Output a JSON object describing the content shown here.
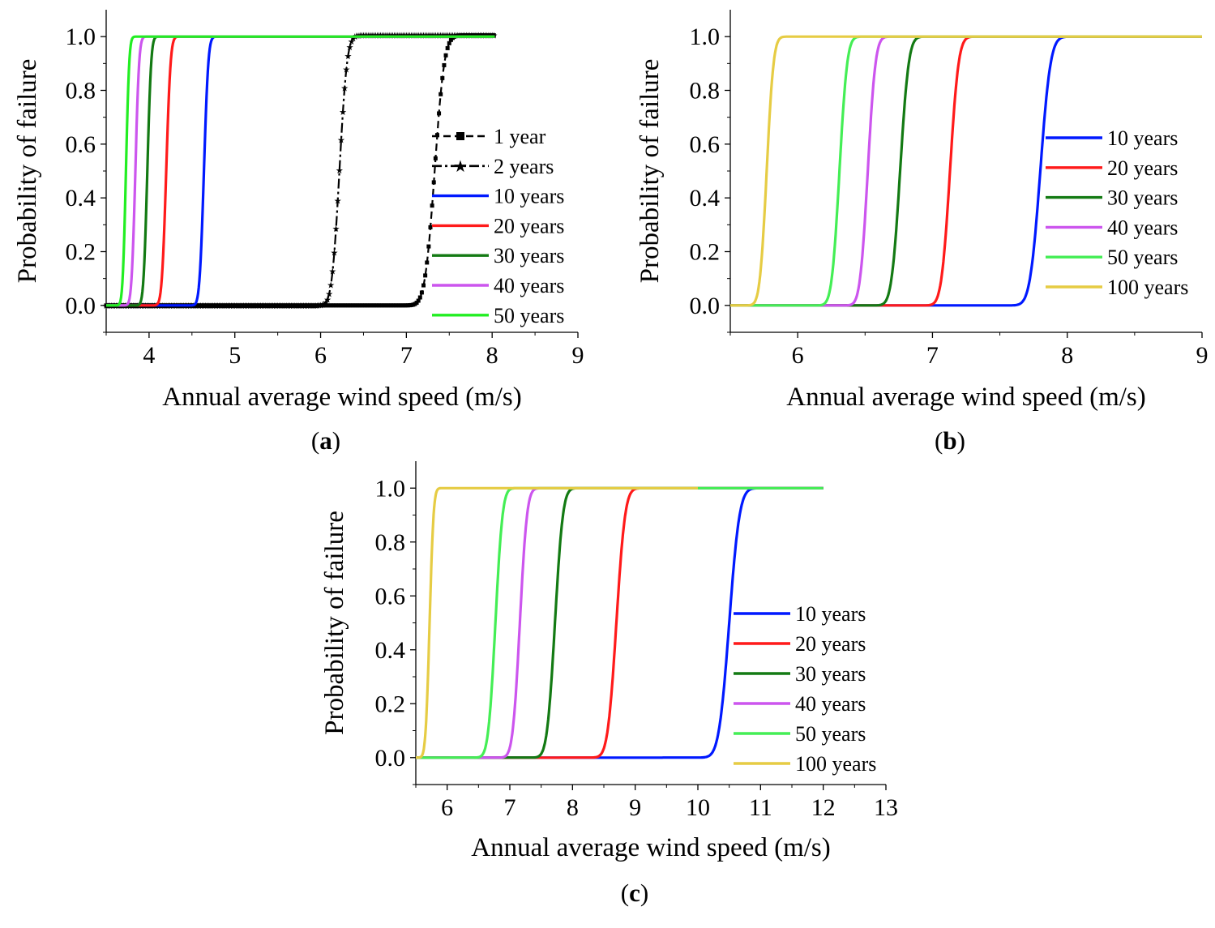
{
  "chart_data": [
    {
      "id": "a",
      "type": "line",
      "panel_label": "a",
      "title": "",
      "xlabel": "Annual average wind speed (m/s)",
      "ylabel": "Probability of failure",
      "xlim": [
        3.5,
        9
      ],
      "ylim": [
        -0.1,
        1.1
      ],
      "xticks": [
        4,
        5,
        6,
        7,
        8,
        9
      ],
      "yticks": [
        0.0,
        0.2,
        0.4,
        0.6,
        0.8,
        1.0
      ],
      "ytick_labels": [
        "0.0",
        "0.2",
        "0.4",
        "0.6",
        "0.8",
        "1.0"
      ],
      "grid": false,
      "legend_position": "center-right",
      "series": [
        {
          "name": "1 year",
          "color": "#000000",
          "style": "dashed-squares",
          "mu": 7.33,
          "sigma": 0.09,
          "xmin": 3.5,
          "xmax": 8.03,
          "y_end": 1.005
        },
        {
          "name": "2 years",
          "color": "#000000",
          "style": "dashdot-stars",
          "mu": 6.22,
          "sigma": 0.07,
          "xmin": 3.5,
          "xmax": 8.03,
          "y_end": 1.005
        },
        {
          "name": "10 years",
          "color": "#0019ff",
          "style": "solid",
          "mu": 4.64,
          "sigma": 0.04,
          "xmin": 3.5,
          "xmax": 8.03
        },
        {
          "name": "20 years",
          "color": "#ff1a1a",
          "style": "solid",
          "mu": 4.2,
          "sigma": 0.04,
          "xmin": 3.5,
          "xmax": 8.03
        },
        {
          "name": "30 years",
          "color": "#137a13",
          "style": "solid",
          "mu": 3.98,
          "sigma": 0.035,
          "xmin": 3.5,
          "xmax": 8.03
        },
        {
          "name": "40 years",
          "color": "#cc55ee",
          "style": "solid",
          "mu": 3.84,
          "sigma": 0.035,
          "xmin": 3.5,
          "xmax": 8.03
        },
        {
          "name": "50 years",
          "color": "#22ee22",
          "style": "solid",
          "mu": 3.73,
          "sigma": 0.03,
          "xmin": 3.5,
          "xmax": 8.03
        }
      ]
    },
    {
      "id": "b",
      "type": "line",
      "panel_label": "b",
      "title": "",
      "xlabel": "Annual average wind speed (m/s)",
      "ylabel": "Probability of failure",
      "xlim": [
        5.5,
        9
      ],
      "ylim": [
        -0.1,
        1.1
      ],
      "xticks": [
        6,
        7,
        8,
        9
      ],
      "yticks": [
        0.0,
        0.2,
        0.4,
        0.6,
        0.8,
        1.0
      ],
      "ytick_labels": [
        "0.0",
        "0.2",
        "0.4",
        "0.6",
        "0.8",
        "1.0"
      ],
      "grid": false,
      "legend_position": "center-right",
      "series": [
        {
          "name": "10 years",
          "color": "#0019ff",
          "style": "solid",
          "mu": 7.8,
          "sigma": 0.06,
          "xmin": 5.5,
          "xmax": 9.0
        },
        {
          "name": "20 years",
          "color": "#ff1a1a",
          "style": "solid",
          "mu": 7.13,
          "sigma": 0.05,
          "xmin": 5.5,
          "xmax": 9.0
        },
        {
          "name": "30 years",
          "color": "#137a13",
          "style": "solid",
          "mu": 6.76,
          "sigma": 0.05,
          "xmin": 5.5,
          "xmax": 9.0
        },
        {
          "name": "40 years",
          "color": "#cc55ee",
          "style": "solid",
          "mu": 6.52,
          "sigma": 0.045,
          "xmin": 5.5,
          "xmax": 9.0
        },
        {
          "name": "50 years",
          "color": "#44ee55",
          "style": "solid",
          "mu": 6.31,
          "sigma": 0.045,
          "xmin": 5.5,
          "xmax": 9.0
        },
        {
          "name": "100 years",
          "color": "#e6cc44",
          "style": "solid",
          "mu": 5.77,
          "sigma": 0.04,
          "xmin": 5.5,
          "xmax": 9.0
        }
      ]
    },
    {
      "id": "c",
      "type": "line",
      "panel_label": "c",
      "title": "",
      "xlabel": "Annual average wind speed (m/s)",
      "ylabel": "Probability of failure",
      "xlim": [
        5.5,
        13
      ],
      "ylim": [
        -0.1,
        1.1
      ],
      "xticks": [
        6,
        7,
        8,
        9,
        10,
        11,
        12,
        13
      ],
      "yticks": [
        0.0,
        0.2,
        0.4,
        0.6,
        0.8,
        1.0
      ],
      "ytick_labels": [
        "0.0",
        "0.2",
        "0.4",
        "0.6",
        "0.8",
        "1.0"
      ],
      "grid": false,
      "legend_position": "center-right",
      "series": [
        {
          "name": "10 years",
          "color": "#0019ff",
          "style": "solid",
          "mu": 10.5,
          "sigma": 0.13,
          "xmin": 5.5,
          "xmax": 12.0
        },
        {
          "name": "20 years",
          "color": "#ff1a1a",
          "style": "solid",
          "mu": 8.7,
          "sigma": 0.11,
          "xmin": 5.5,
          "xmax": 12.0
        },
        {
          "name": "30 years",
          "color": "#137a13",
          "style": "solid",
          "mu": 7.72,
          "sigma": 0.1,
          "xmin": 5.5,
          "xmax": 12.0
        },
        {
          "name": "40 years",
          "color": "#cc55ee",
          "style": "solid",
          "mu": 7.16,
          "sigma": 0.09,
          "xmin": 5.5,
          "xmax": 12.0
        },
        {
          "name": "50 years",
          "color": "#44ee55",
          "style": "solid",
          "mu": 6.77,
          "sigma": 0.09,
          "xmin": 5.5,
          "xmax": 12.0
        },
        {
          "name": "100 years",
          "color": "#e6cc44",
          "style": "solid",
          "mu": 5.72,
          "sigma": 0.05,
          "xmin": 5.5,
          "xmax": 10.0
        }
      ]
    }
  ]
}
